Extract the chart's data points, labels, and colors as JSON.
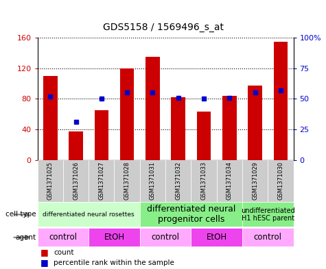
{
  "title": "GDS5158 / 1569496_s_at",
  "samples": [
    "GSM1371025",
    "GSM1371026",
    "GSM1371027",
    "GSM1371028",
    "GSM1371031",
    "GSM1371032",
    "GSM1371033",
    "GSM1371034",
    "GSM1371029",
    "GSM1371030"
  ],
  "counts": [
    110,
    37,
    65,
    120,
    135,
    82,
    63,
    84,
    97,
    155
  ],
  "percentile_ranks": [
    52,
    31,
    50,
    55,
    55,
    51,
    50,
    51,
    55,
    57
  ],
  "ylim_left": [
    0,
    160
  ],
  "ylim_right": [
    0,
    100
  ],
  "yticks_left": [
    0,
    40,
    80,
    120,
    160
  ],
  "yticks_right": [
    0,
    25,
    50,
    75,
    100
  ],
  "yticklabels_right": [
    "0",
    "25",
    "50",
    "75",
    "100%"
  ],
  "bar_color": "#cc0000",
  "dot_color": "#0000cc",
  "bar_width": 0.55,
  "cell_type_groups": [
    {
      "label": "differentiated neural rosettes",
      "start": 0,
      "end": 3,
      "color": "#ccffcc",
      "fontsize": 6.5
    },
    {
      "label": "differentiated neural\nprogenitor cells",
      "start": 4,
      "end": 7,
      "color": "#88ee88",
      "fontsize": 9
    },
    {
      "label": "undifferentiated\nH1 hESC parent",
      "start": 8,
      "end": 9,
      "color": "#88ee88",
      "fontsize": 7
    }
  ],
  "agent_groups": [
    {
      "label": "control",
      "start": 0,
      "end": 1,
      "color": "#ffaaff"
    },
    {
      "label": "EtOH",
      "start": 2,
      "end": 3,
      "color": "#ee44ee"
    },
    {
      "label": "control",
      "start": 4,
      "end": 5,
      "color": "#ffaaff"
    },
    {
      "label": "EtOH",
      "start": 6,
      "end": 7,
      "color": "#ee44ee"
    },
    {
      "label": "control",
      "start": 8,
      "end": 9,
      "color": "#ffaaff"
    }
  ],
  "cell_type_label": "cell type",
  "agent_label": "agent",
  "legend_count_color": "#cc0000",
  "legend_dot_color": "#0000cc",
  "tick_label_color_left": "#cc0000",
  "tick_label_color_right": "#0000cc",
  "sample_bg_color": "#cccccc",
  "sample_sep_color": "#ffffff"
}
